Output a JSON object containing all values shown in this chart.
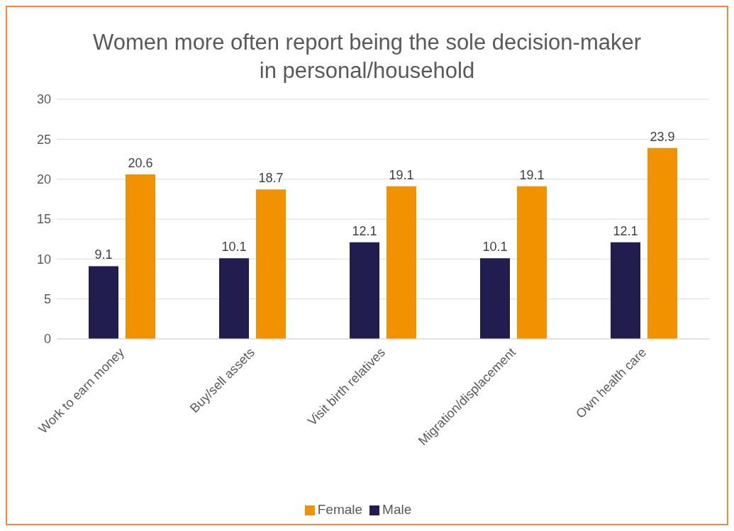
{
  "chart_data": {
    "type": "bar",
    "title": "Women more often report being the sole decision-maker in personal/household",
    "categories": [
      "Work to earn money",
      "Buy/sell assets",
      "Visit birth relatives",
      "Migration/displacement",
      "Own health care"
    ],
    "series": [
      {
        "name": "Male",
        "color": "#221d4f",
        "values": [
          9.1,
          10.1,
          12.1,
          10.1,
          12.1
        ]
      },
      {
        "name": "Female",
        "color": "#f39200",
        "values": [
          20.6,
          18.7,
          19.1,
          19.1,
          23.9
        ]
      }
    ],
    "ylim": [
      0,
      30
    ],
    "yticks": [
      0,
      5,
      10,
      15,
      20,
      25,
      30
    ],
    "grid": "y",
    "legend": "bottom",
    "data_labels": true
  }
}
